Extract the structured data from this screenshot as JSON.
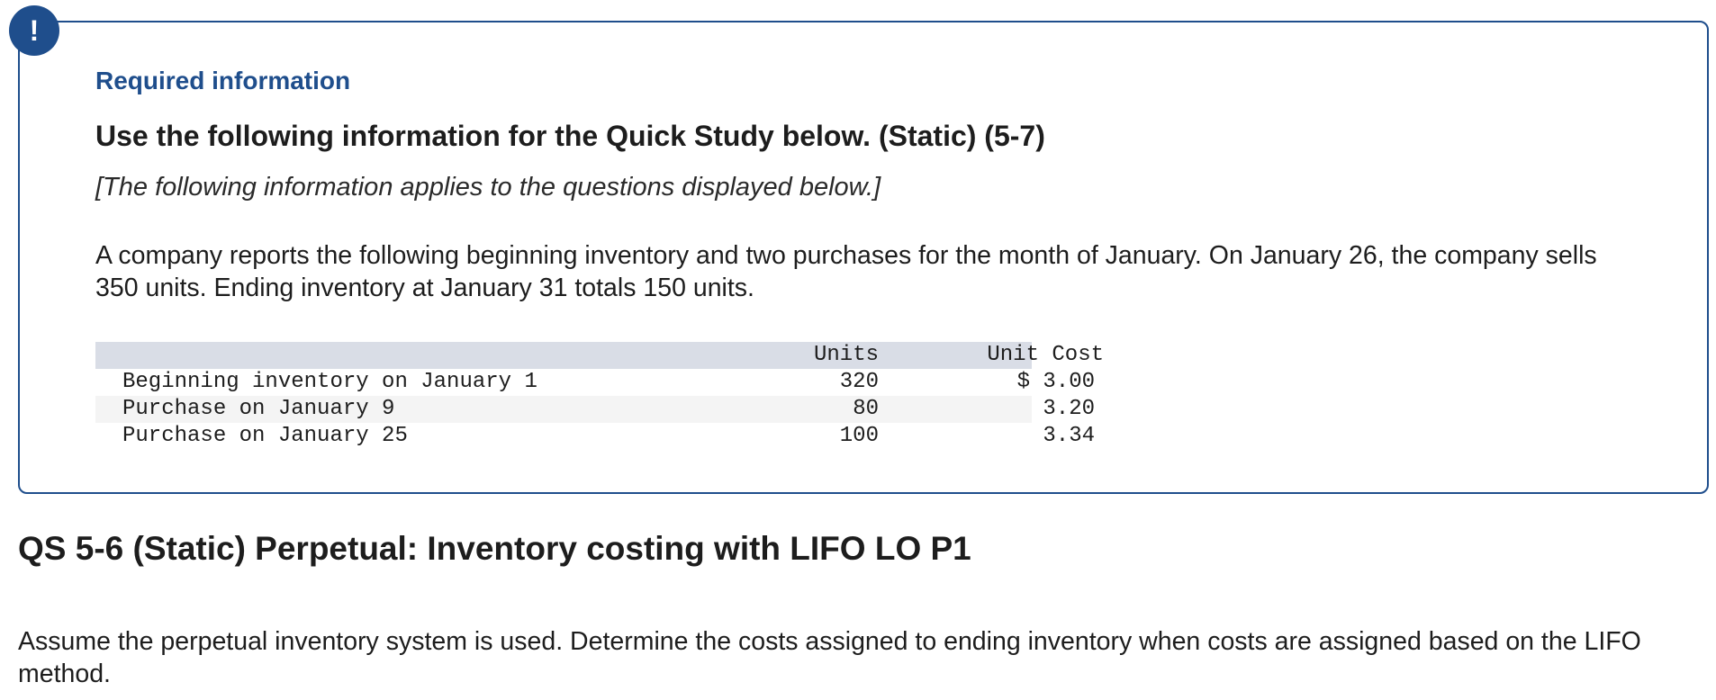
{
  "alert": {
    "symbol": "!",
    "icon": "exclamation-icon"
  },
  "info_box": {
    "label": "Required information",
    "heading": "Use the following information for the Quick Study below. (Static) (5-7)",
    "applies_note": "[The following information applies to the questions displayed below.]",
    "intro": "A company reports the following beginning inventory and two purchases for the month of January. On January 26, the company sells 350 units. Ending inventory at January 31 totals 150 units.",
    "table": {
      "headers": {
        "label": "",
        "units": "Units",
        "unit_cost": "Unit Cost"
      },
      "rows": [
        {
          "label": "Beginning inventory on January 1",
          "units": "320",
          "unit_cost": "$ 3.00"
        },
        {
          "label": "Purchase on January 9",
          "units": "80",
          "unit_cost": "3.20"
        },
        {
          "label": "Purchase on January 25",
          "units": "100",
          "unit_cost": "3.34"
        }
      ]
    }
  },
  "question": {
    "title": "QS 5-6 (Static) Perpetual: Inventory costing with LIFO LO P1",
    "prompt": "Assume the perpetual inventory system is used. Determine the costs assigned to ending inventory when costs are assigned based on the LIFO method."
  },
  "colors": {
    "accent": "#1f4e8c",
    "table_header_bg": "#d9dde6",
    "table_shaded_row": "#f4f4f4"
  }
}
